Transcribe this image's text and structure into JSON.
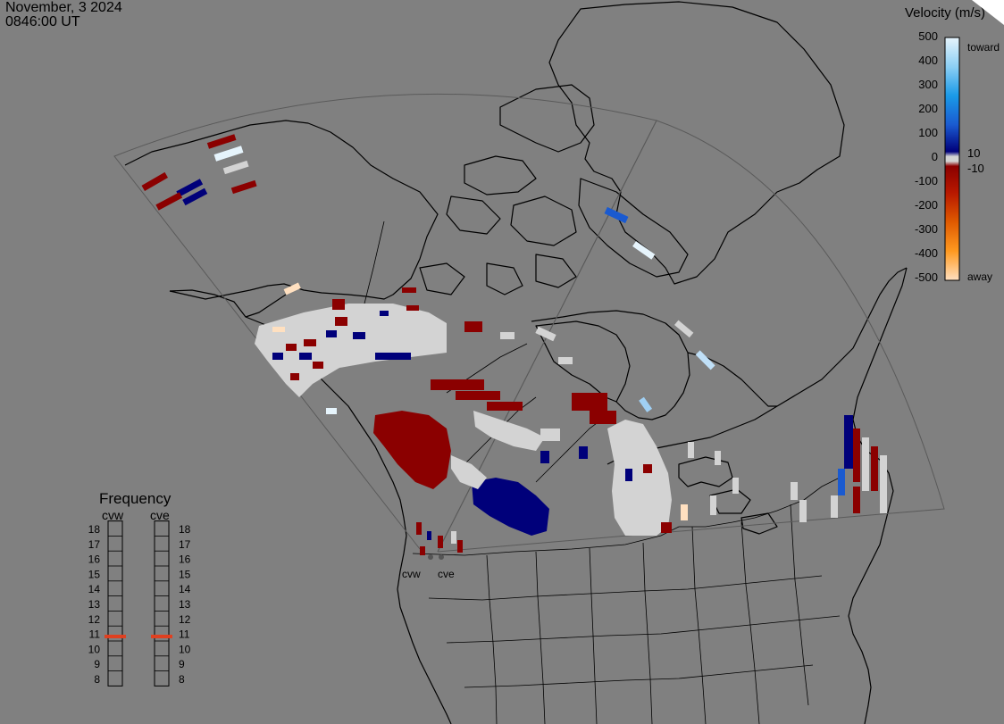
{
  "header": {
    "date": "November, 3 2024",
    "time": "0846:00 UT"
  },
  "velocity_legend": {
    "title": "Velocity (m/s)",
    "ticks": [
      "500",
      "400",
      "300",
      "200",
      "100",
      "0",
      "-100",
      "-200",
      "-300",
      "-400",
      "-500"
    ],
    "inner_labels": [
      "10",
      "-10"
    ],
    "toward_label": "toward",
    "away_label": "away",
    "colors": {
      "toward_extreme": "#e6f4fc",
      "toward_mid": "#1a8ae0",
      "toward_low": "#00007a",
      "zero": "#d3d3d3",
      "away_low": "#8b0000",
      "away_mid": "#e05a00",
      "away_extreme": "#ffe0c0"
    }
  },
  "frequency_panel": {
    "title": "Frequency",
    "radars": [
      {
        "name": "cvw",
        "frequency_mhz": 10.8
      },
      {
        "name": "cve",
        "frequency_mhz": 10.8
      }
    ],
    "scale": [
      "18",
      "17",
      "16",
      "15",
      "14",
      "13",
      "12",
      "11",
      "10",
      "9",
      "8"
    ]
  },
  "radar_site_labels": [
    "cvw",
    "cve"
  ],
  "colors": {
    "background": "#808080",
    "coastline": "#000000",
    "fov_outline": "#5a5a5a",
    "ground_scatter": "#d3d3d3",
    "frequency_marker": "#e04020"
  }
}
